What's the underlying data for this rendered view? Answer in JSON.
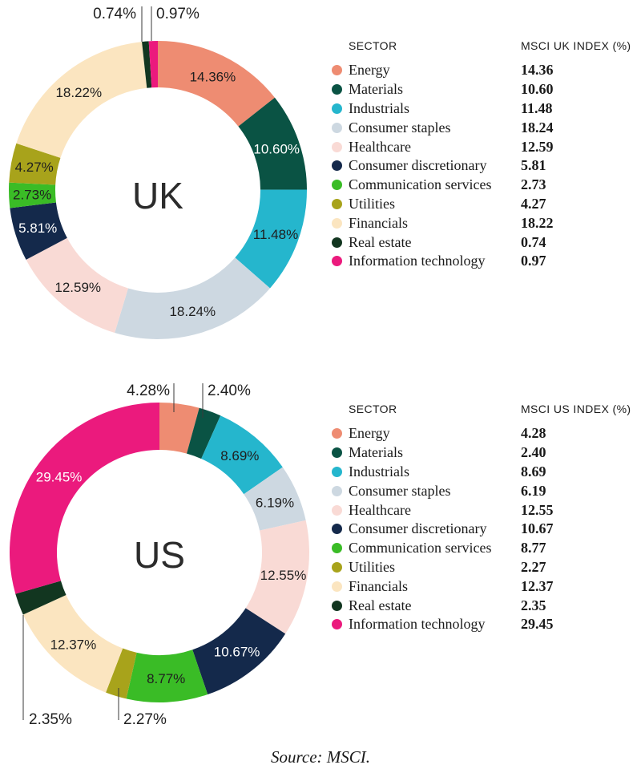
{
  "source": "Source: MSCI.",
  "chart_data": [
    {
      "type": "donut",
      "region": "UK",
      "center_label": "UK",
      "sector_header": "SECTOR",
      "index_header": "MSCI UK INDEX (%)",
      "categories": [
        "Energy",
        "Materials",
        "Industrials",
        "Consumer staples",
        "Healthcare",
        "Consumer discretionary",
        "Communication services",
        "Utilities",
        "Financials",
        "Real estate",
        "Information technology"
      ],
      "values": [
        14.36,
        10.6,
        11.48,
        18.24,
        12.59,
        5.81,
        2.73,
        4.27,
        18.22,
        0.74,
        0.97
      ],
      "values_display": [
        "14.36",
        "10.60",
        "11.48",
        "18.24",
        "12.59",
        "5.81",
        "2.73",
        "4.27",
        "18.22",
        "0.74",
        "0.97"
      ],
      "values_pct": [
        "14.36%",
        "10.60%",
        "11.48%",
        "18.24%",
        "12.59%",
        "5.81%",
        "2.73%",
        "4.27%",
        "18.22%",
        "0.74%",
        "0.97%"
      ],
      "colors": [
        "#EE8C72",
        "#0A5344",
        "#25B6CD",
        "#CDD8E1",
        "#F9DAD5",
        "#14294B",
        "#3ABC26",
        "#A8A31B",
        "#FBE5C0",
        "#123620",
        "#EB1A7D"
      ],
      "label_placement": [
        "inside",
        "inside",
        "inside",
        "inside",
        "inside",
        "inside",
        "inside",
        "inside",
        "inside",
        "callout",
        "callout"
      ],
      "label_contrast": [
        "dark",
        "light",
        "dark",
        "dark",
        "dark",
        "light",
        "dark",
        "dark",
        "dark",
        "dark",
        "dark"
      ]
    },
    {
      "type": "donut",
      "region": "US",
      "center_label": "US",
      "sector_header": "SECTOR",
      "index_header": "MSCI US INDEX (%)",
      "categories": [
        "Energy",
        "Materials",
        "Industrials",
        "Consumer staples",
        "Healthcare",
        "Consumer discretionary",
        "Communication services",
        "Utilities",
        "Financials",
        "Real estate",
        "Information technology"
      ],
      "values": [
        4.28,
        2.4,
        8.69,
        6.19,
        12.55,
        10.67,
        8.77,
        2.27,
        12.37,
        2.35,
        29.45
      ],
      "values_display": [
        "4.28",
        "2.40",
        "8.69",
        "6.19",
        "12.55",
        "10.67",
        "8.77",
        "2.27",
        "12.37",
        "2.35",
        "29.45"
      ],
      "values_pct": [
        "4.28%",
        "2.40%",
        "8.69%",
        "6.19%",
        "12.55%",
        "10.67%",
        "8.77%",
        "2.27%",
        "12.37%",
        "2.35%",
        "29.45%"
      ],
      "colors": [
        "#EE8C72",
        "#0A5344",
        "#25B6CD",
        "#CDD8E1",
        "#F9DAD5",
        "#14294B",
        "#3ABC26",
        "#A8A31B",
        "#FBE5C0",
        "#123620",
        "#EB1A7D"
      ],
      "label_placement": [
        "callout",
        "callout",
        "inside",
        "inside",
        "inside",
        "inside",
        "inside",
        "callout",
        "inside",
        "callout",
        "inside"
      ],
      "label_contrast": [
        "dark",
        "dark",
        "dark",
        "dark",
        "dark",
        "light",
        "dark",
        "dark",
        "dark",
        "dark",
        "light"
      ]
    }
  ]
}
